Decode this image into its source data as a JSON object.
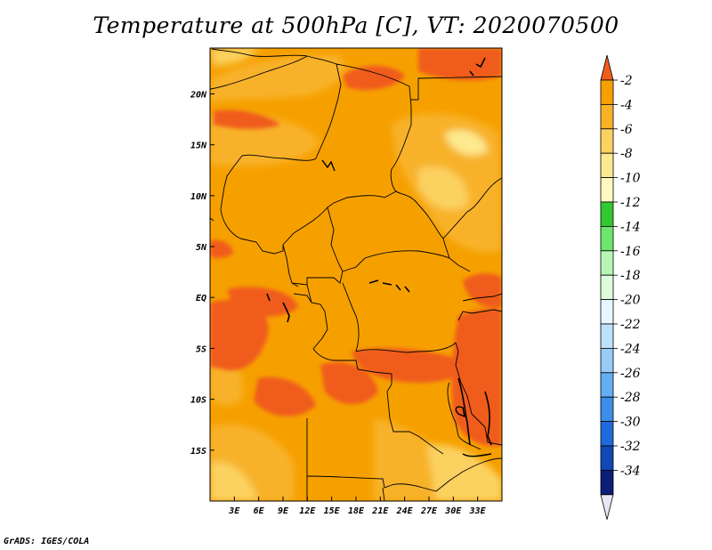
{
  "title": "Temperature at 500hPa [C], VT: 2020070500",
  "credit": "GrADS: IGES/COLA",
  "map": {
    "lon_range": [
      0,
      36
    ],
    "lat_range": [
      -20,
      24.5
    ],
    "lat_ticks": [
      {
        "value": 20,
        "label": "20N"
      },
      {
        "value": 15,
        "label": "15N"
      },
      {
        "value": 10,
        "label": "10N"
      },
      {
        "value": 5,
        "label": "5N"
      },
      {
        "value": 0,
        "label": "EQ"
      },
      {
        "value": -5,
        "label": "5S"
      },
      {
        "value": -10,
        "label": "10S"
      },
      {
        "value": -15,
        "label": "15S"
      }
    ],
    "lon_ticks": [
      {
        "value": 3,
        "label": "3E"
      },
      {
        "value": 6,
        "label": "6E"
      },
      {
        "value": 9,
        "label": "9E"
      },
      {
        "value": 12,
        "label": "12E"
      },
      {
        "value": 15,
        "label": "15E"
      },
      {
        "value": 18,
        "label": "18E"
      },
      {
        "value": 21,
        "label": "21E"
      },
      {
        "value": 24,
        "label": "24E"
      },
      {
        "value": 27,
        "label": "27E"
      },
      {
        "value": 30,
        "label": "30E"
      },
      {
        "value": 33,
        "label": "33E"
      }
    ]
  },
  "colorbar": {
    "labels": [
      "-2",
      "-4",
      "-6",
      "-8",
      "-10",
      "-12",
      "-14",
      "-16",
      "-18",
      "-20",
      "-22",
      "-24",
      "-26",
      "-28",
      "-30",
      "-32",
      "-34"
    ],
    "colors": [
      "#f05c1c",
      "#f6a000",
      "#f8b22a",
      "#fbd160",
      "#fde98e",
      "#fff9c0",
      "#32c832",
      "#6de46d",
      "#b6f5b6",
      "#dcfcdc",
      "#e8f7ff",
      "#bde1fb",
      "#98ccf7",
      "#64aef2",
      "#3c8ee8",
      "#1f6bdc",
      "#1048b4",
      "#0c1e78",
      "#e6e6f5"
    ]
  },
  "chart_data": {
    "type": "heatmap",
    "title": "Temperature at 500hPa [C], VT: 2020070500",
    "variable": "Temperature at 500hPa",
    "units": "C",
    "valid_time": "2020070500",
    "lon_range_deg_east": [
      0,
      36
    ],
    "lat_range_deg": [
      -20,
      24.5
    ],
    "contour_levels": [
      -2,
      -4,
      -6,
      -8,
      -10,
      -12,
      -14,
      -16,
      -18,
      -20,
      -22,
      -24,
      -26,
      -28,
      -30,
      -32,
      -34
    ],
    "dominant_range": "-6 to -4",
    "warmest_range": "-4 to -2",
    "coolest_visible_range": "-10 to -8"
  }
}
